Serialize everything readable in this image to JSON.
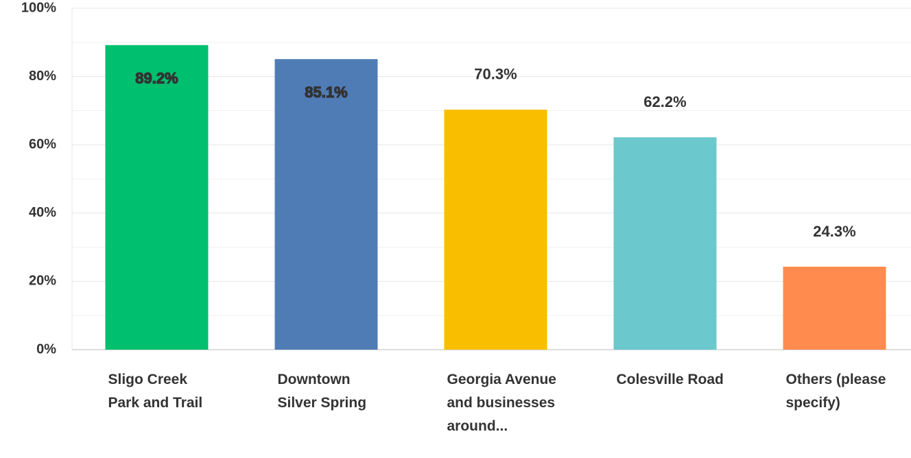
{
  "chart_data": {
    "type": "bar",
    "categories": [
      "Sligo Creek Park and Trail",
      "Downtown Silver Spring",
      "Georgia Avenue and businesses around...",
      "Colesville Road",
      "Others (please specify)"
    ],
    "values": [
      89.2,
      85.1,
      70.3,
      62.2,
      24.3
    ],
    "value_labels": [
      "89.2%",
      "85.1%",
      "70.3%",
      "62.2%",
      "24.3%"
    ],
    "colors": [
      "#00bf6f",
      "#507cb6",
      "#f9be00",
      "#6bc8cd",
      "#ff8b4f"
    ],
    "ylim": [
      0,
      100
    ],
    "yticks": [
      {
        "value": 0,
        "label": "0%"
      },
      {
        "value": 20,
        "label": "20%"
      },
      {
        "value": 40,
        "label": "40%"
      },
      {
        "value": 60,
        "label": "60%"
      },
      {
        "value": 80,
        "label": "80%"
      },
      {
        "value": 100,
        "label": "100%"
      }
    ],
    "minor_yticks": [
      10,
      30,
      50,
      70,
      90
    ],
    "grid": true
  }
}
